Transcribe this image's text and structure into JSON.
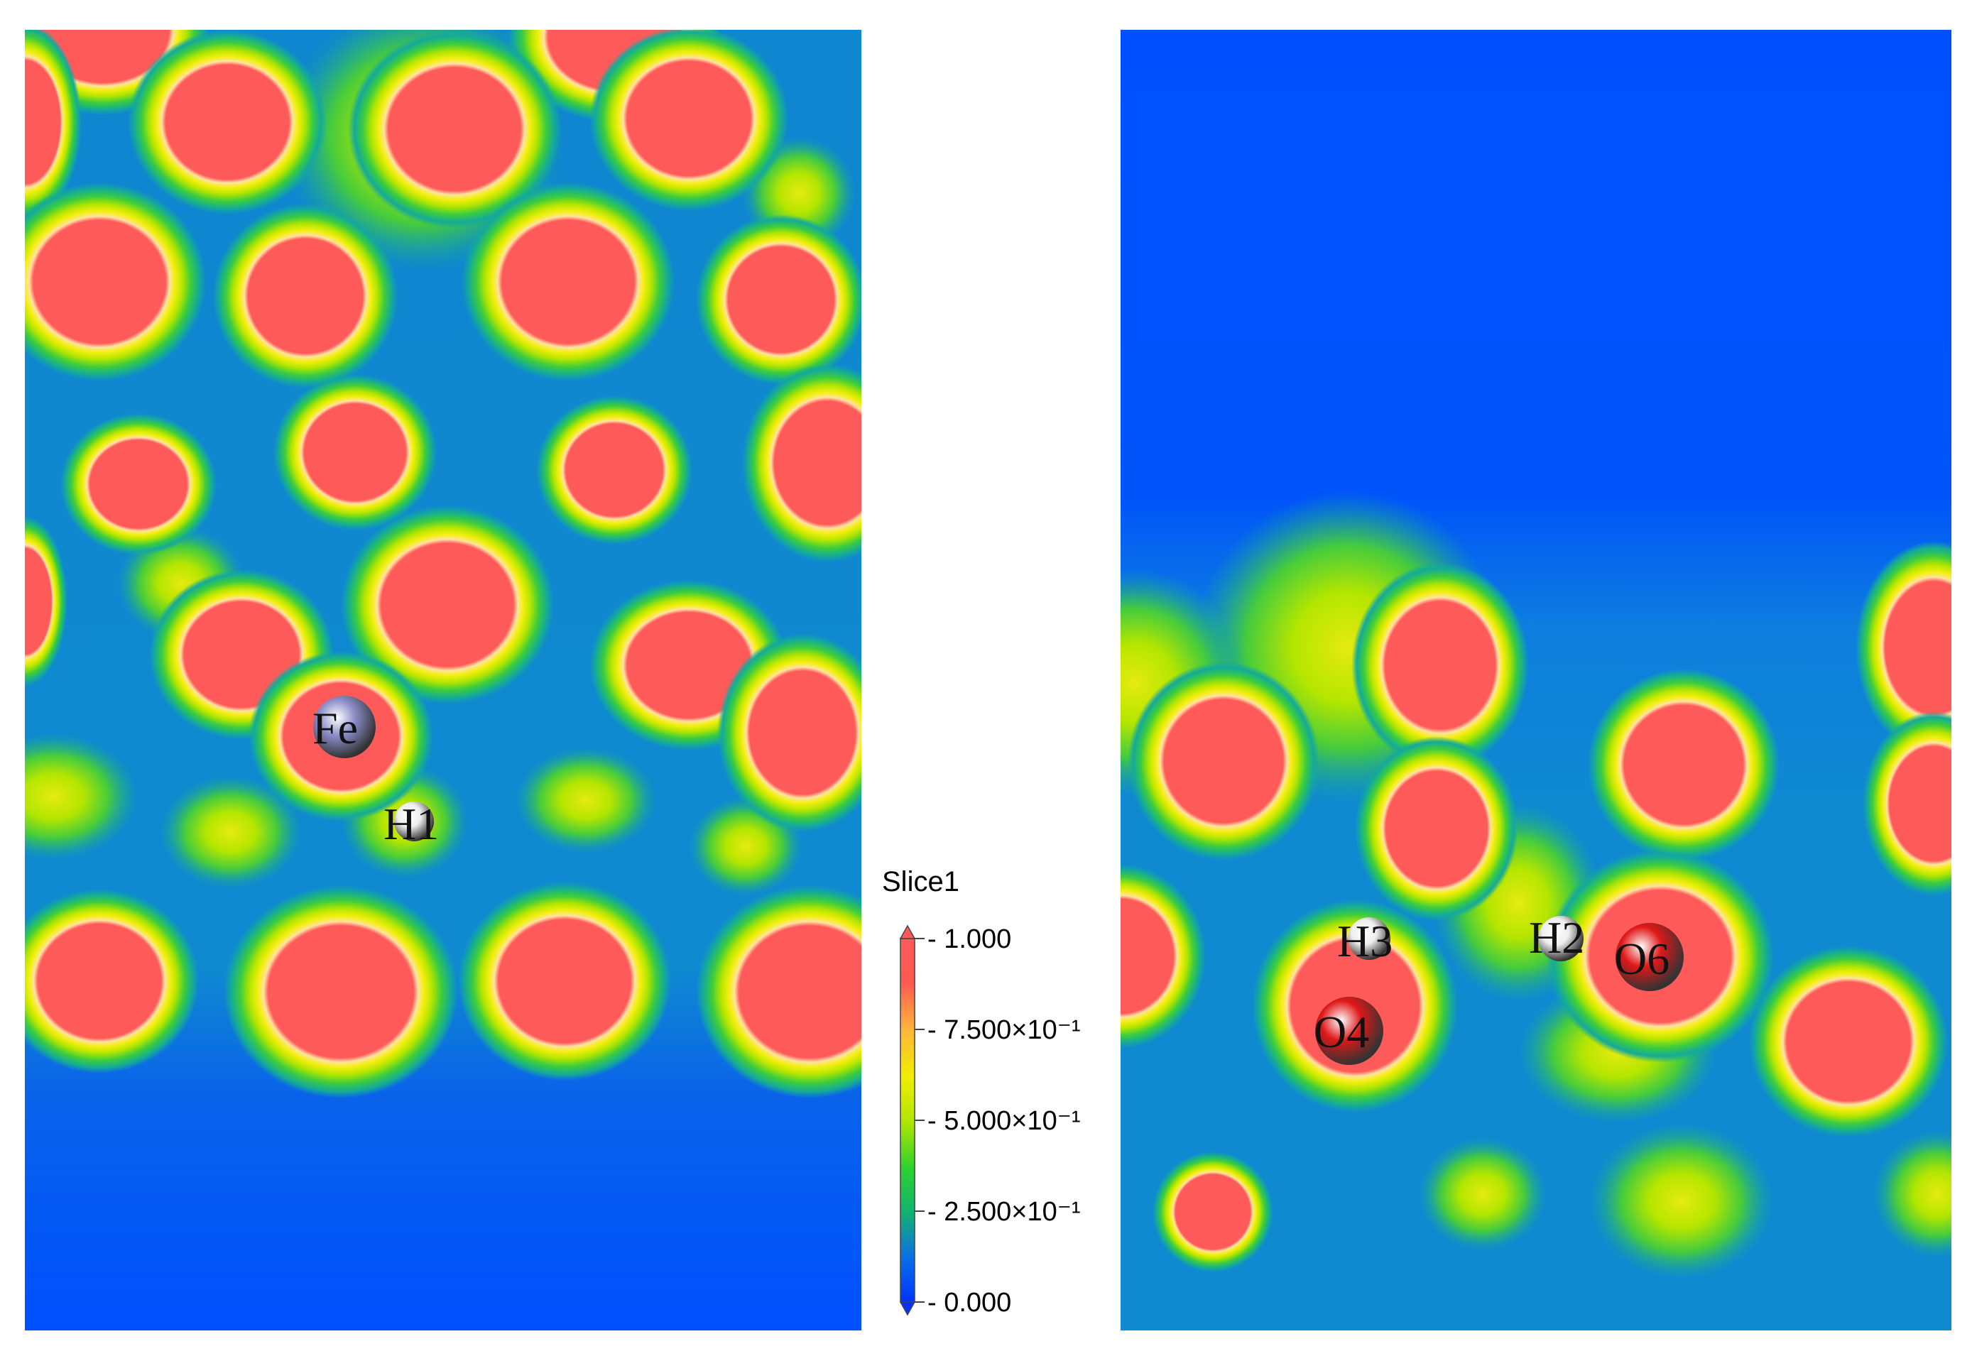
{
  "legend": {
    "title": "Slice1",
    "ticks": [
      {
        "label": "1.000",
        "value": 1.0
      },
      {
        "label": "7.500×10⁻¹",
        "value": 0.75
      },
      {
        "label": "5.000×10⁻¹",
        "value": 0.5
      },
      {
        "label": "2.500×10⁻¹",
        "value": 0.25
      },
      {
        "label": "0.000",
        "value": 0.0
      }
    ],
    "colors": [
      "#0033ff",
      "#0a6ee6",
      "#13b46e",
      "#2dd22d",
      "#b4e600",
      "#f0ee00",
      "#ffb43c",
      "#ff5a50",
      "#ff5a5a"
    ]
  },
  "panels": {
    "left": {
      "atoms": [
        {
          "label": "Fe",
          "color": "#8a8cc8"
        },
        {
          "label": "H1",
          "color": "#eeeeee"
        }
      ]
    },
    "right": {
      "atoms": [
        {
          "label": "H3",
          "color": "#eeeeee"
        },
        {
          "label": "H2",
          "color": "#eeeeee"
        },
        {
          "label": "O6",
          "color": "#e01818"
        },
        {
          "label": "O4",
          "color": "#e01818"
        }
      ]
    }
  }
}
